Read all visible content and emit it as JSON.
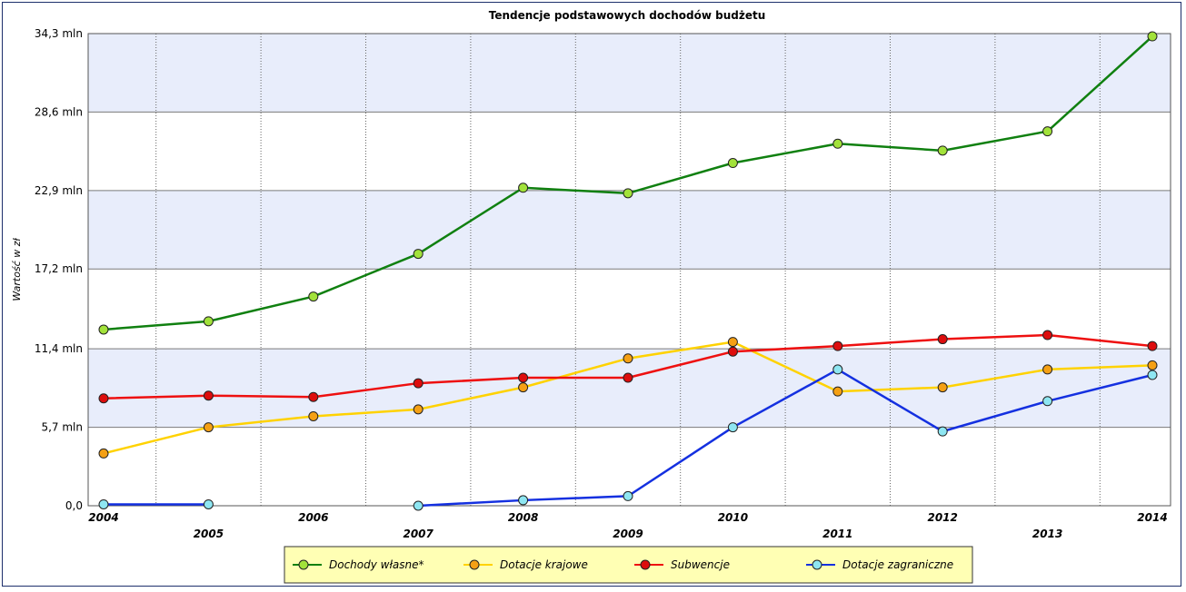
{
  "chart_data": {
    "type": "line",
    "title": "Tendencje podstawowych dochodów budżetu",
    "ylabel": "Wartość w zł",
    "xlabel": "",
    "ylim": [
      0,
      34.3
    ],
    "y_ticks": [
      "0,0",
      "5,7 mln",
      "11,4 mln",
      "17,2 mln",
      "22,9 mln",
      "28,6 mln",
      "34,3 mln"
    ],
    "y_tick_values": [
      0,
      5.7,
      11.4,
      17.2,
      22.9,
      28.6,
      34.3
    ],
    "categories": [
      "2004",
      "2005",
      "2006",
      "2007",
      "2008",
      "2009",
      "2010",
      "2011",
      "2012",
      "2013",
      "2014"
    ],
    "grid": true,
    "legend_position": "bottom",
    "series": [
      {
        "name": "Dochody własne*",
        "color": "#108010",
        "marker_color": "#a2e23a",
        "values": [
          12.8,
          13.4,
          15.2,
          18.3,
          23.1,
          22.7,
          24.9,
          26.3,
          25.8,
          27.2,
          34.1
        ]
      },
      {
        "name": "Dotacje krajowe",
        "color": "#ffd200",
        "marker_color": "#f5a014",
        "values": [
          3.8,
          5.7,
          6.5,
          7.0,
          8.6,
          10.7,
          11.9,
          8.3,
          8.6,
          9.9,
          10.2
        ]
      },
      {
        "name": "Subwencje",
        "color": "#ee1010",
        "marker_color": "#dd0d0d",
        "values": [
          7.8,
          8.0,
          7.9,
          8.9,
          9.3,
          9.3,
          11.2,
          11.6,
          12.1,
          12.4,
          11.6
        ]
      },
      {
        "name": "Dotacje zagraniczne",
        "color": "#1430e0",
        "marker_color": "#8ee6f2",
        "values": [
          0.1,
          0.1,
          null,
          0.0,
          0.4,
          0.7,
          5.7,
          9.9,
          5.4,
          7.6,
          9.5
        ]
      }
    ]
  }
}
